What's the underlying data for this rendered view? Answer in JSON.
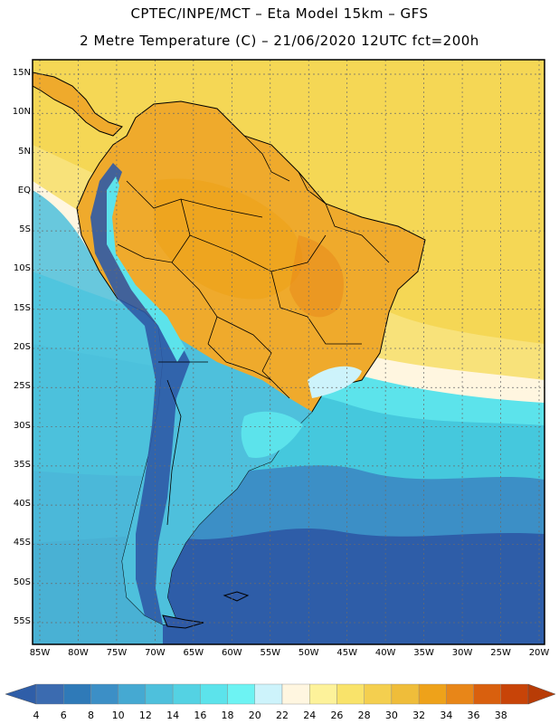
{
  "header": {
    "line1": "CPTEC/INPE/MCT –  Eta Model 15km – GFS",
    "line2": "2 Metre Temperature (C) – 21/06/2020 12UTC fct=200h"
  },
  "map": {
    "latitude_labels": [
      "15N",
      "10N",
      "5N",
      "EQ",
      "5S",
      "10S",
      "15S",
      "20S",
      "25S",
      "30S",
      "35S",
      "40S",
      "45S",
      "50S",
      "55S"
    ],
    "longitude_labels": [
      "85W",
      "80W",
      "75W",
      "70W",
      "65W",
      "60W",
      "55W",
      "50W",
      "45W",
      "40W",
      "35W",
      "30W",
      "25W",
      "20W"
    ]
  },
  "colorbar": {
    "labels": [
      "4",
      "6",
      "8",
      "10",
      "12",
      "14",
      "16",
      "18",
      "20",
      "22",
      "24",
      "26",
      "28",
      "30",
      "32",
      "34",
      "36",
      "38"
    ],
    "colors": [
      "#3b6bb0",
      "#2f7ab8",
      "#3c8fc6",
      "#45a9d2",
      "#4ec0dc",
      "#54d2e3",
      "#5ce3eb",
      "#6df3f3",
      "#cdf3fb",
      "#fff6e0",
      "#fdf29a",
      "#f9e36a",
      "#f4cf4f",
      "#efbd3a",
      "#eea21a",
      "#e88618",
      "#d9600e",
      "#c84408"
    ],
    "end_colors": [
      "#2f5ea8",
      "#b83c06"
    ]
  },
  "palette": {
    "ocean_deep": "#2e5da8",
    "ocean_mid": "#3c8fc6",
    "ocean_light": "#45d3e3",
    "ocean_cyan": "#5ce3eb",
    "tropic_sea": "#f5d755",
    "tropic_sea_light": "#f8e27a",
    "land_hot": "#efaa2c",
    "land_warm": "#f2c04c",
    "andes_cold": "#2f5aa6",
    "andes_mid": "#3e86c1"
  }
}
